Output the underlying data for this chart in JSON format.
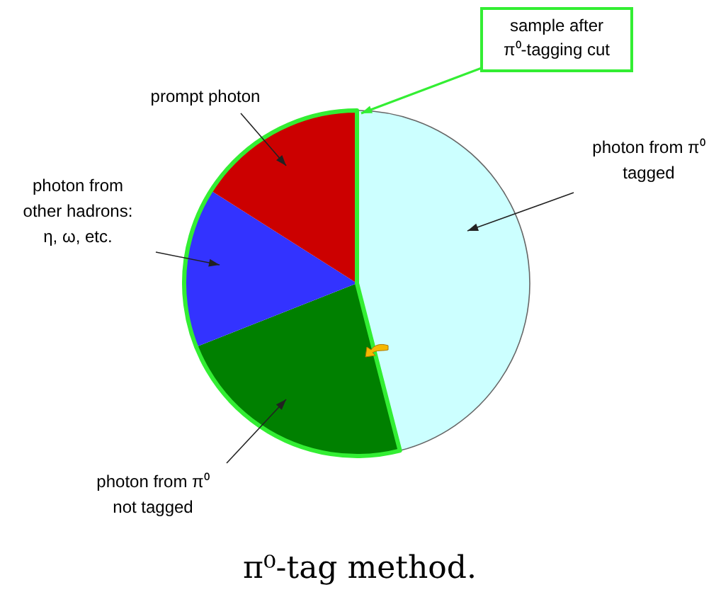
{
  "chart_data": {
    "type": "pie",
    "title": "π⁰-tag method.",
    "categories": [
      "photon from π⁰\ntagged",
      "photon from π⁰\nnot tagged",
      "photon from\nother hadrons:\nη, ω, etc.",
      "prompt photon"
    ],
    "values": [
      46,
      23,
      15,
      16
    ],
    "colors": [
      "#ccffff",
      "#008000",
      "#3333ff",
      "#cc0000"
    ],
    "annotations": [
      "sample after\nπ⁰-tagging cut"
    ]
  }
}
